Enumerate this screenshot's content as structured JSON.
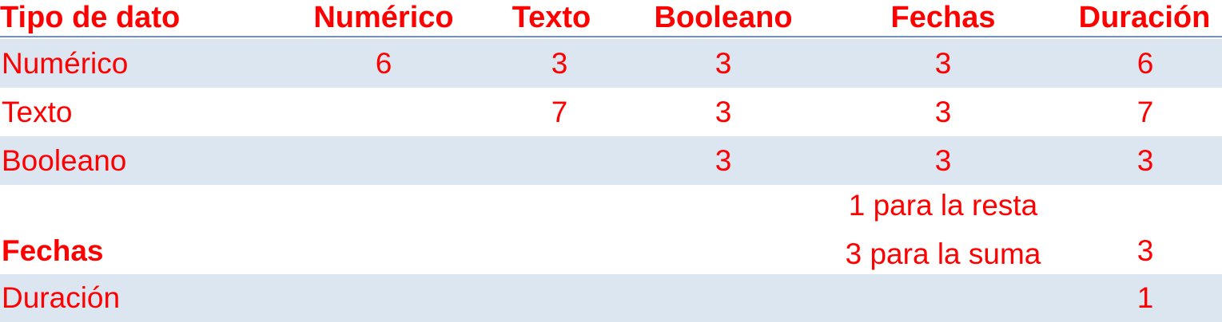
{
  "table": {
    "headers": [
      "Tipo de dato",
      "Numérico",
      "Texto",
      "Booleano",
      "Fechas",
      "Duración"
    ],
    "rows": [
      {
        "label": "Numérico",
        "cells": [
          "6",
          "3",
          "3",
          "3",
          "6"
        ]
      },
      {
        "label": "Texto",
        "cells": [
          "",
          "7",
          "3",
          "3",
          "7"
        ]
      },
      {
        "label": "Booleano",
        "cells": [
          "",
          "",
          "3",
          "3",
          "3"
        ]
      },
      {
        "label": "Fechas",
        "cells": [
          "",
          "",
          "",
          "",
          "3"
        ],
        "fechas_lines": [
          "1 para la resta",
          "3 para la suma"
        ]
      },
      {
        "label": "Duración",
        "cells": [
          "",
          "",
          "",
          "",
          "1"
        ]
      }
    ]
  },
  "colors": {
    "text": "#ff0000",
    "band": "#dce6f1",
    "header_rule": "#6b8fd1"
  }
}
